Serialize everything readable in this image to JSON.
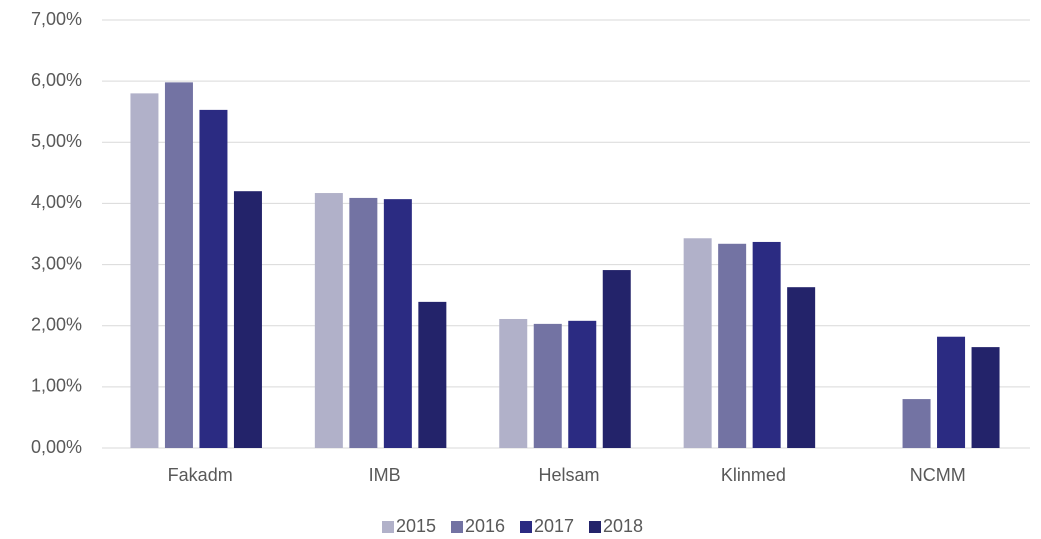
{
  "chart_data": {
    "type": "bar",
    "categories": [
      "Fakadm",
      "IMB",
      "Helsam",
      "Klinmed",
      "NCMM"
    ],
    "series": [
      {
        "name": "2015",
        "color": "#b1b1c9",
        "values": [
          5.8,
          4.17,
          2.11,
          3.43,
          null
        ]
      },
      {
        "name": "2016",
        "color": "#7373a3",
        "values": [
          5.98,
          4.09,
          2.03,
          3.34,
          0.8
        ]
      },
      {
        "name": "2017",
        "color": "#2b2b82",
        "values": [
          5.53,
          4.07,
          2.08,
          3.37,
          1.82
        ]
      },
      {
        "name": "2018",
        "color": "#23236a",
        "values": [
          4.2,
          2.39,
          2.91,
          2.63,
          1.65
        ]
      }
    ],
    "ylim": [
      0,
      7
    ],
    "yticks": [
      {
        "value": 0,
        "label": "0,00%"
      },
      {
        "value": 1,
        "label": "1,00%"
      },
      {
        "value": 2,
        "label": "2,00%"
      },
      {
        "value": 3,
        "label": "3,00%"
      },
      {
        "value": 4,
        "label": "4,00%"
      },
      {
        "value": 5,
        "label": "5,00%"
      },
      {
        "value": 6,
        "label": "6,00%"
      },
      {
        "value": 7,
        "label": "7,00%"
      }
    ],
    "grid": true,
    "legend": "bottom"
  }
}
